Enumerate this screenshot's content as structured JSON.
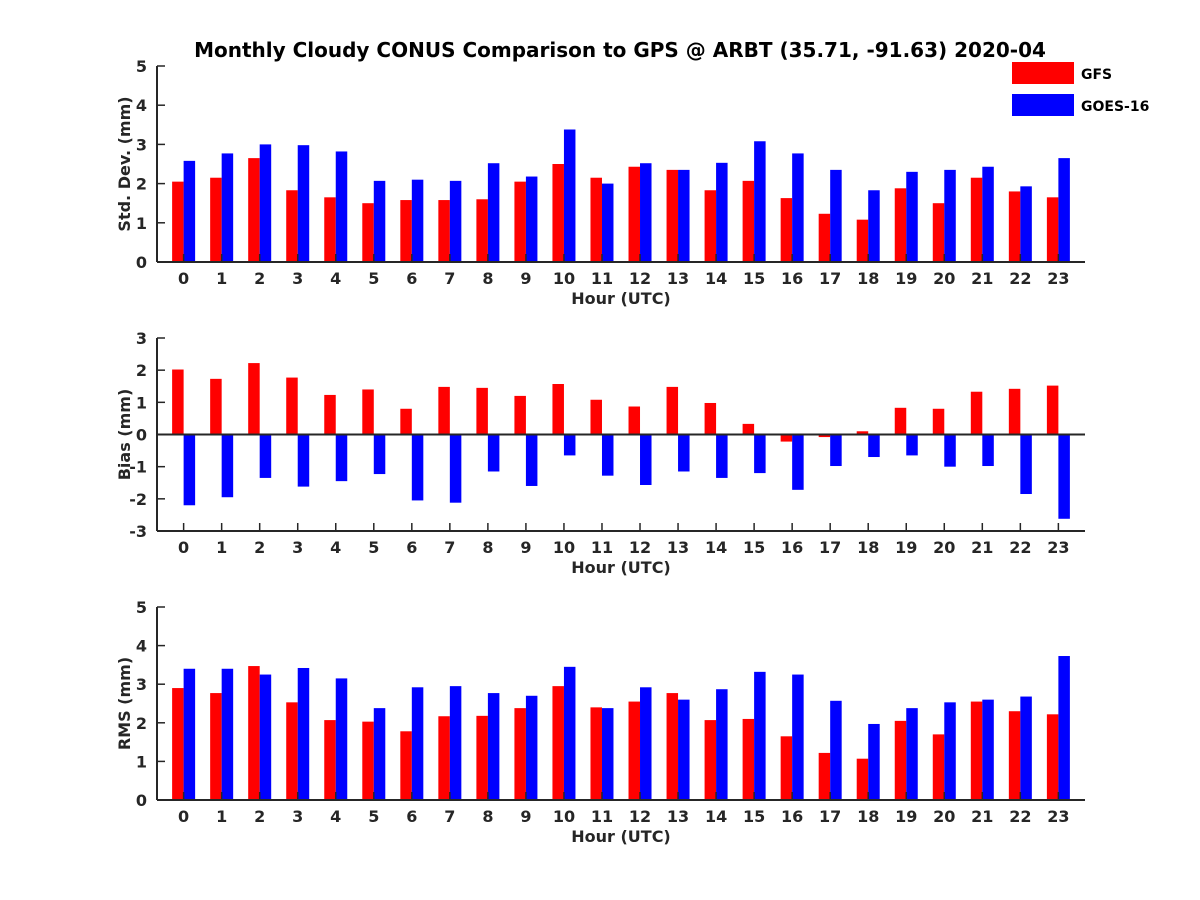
{
  "title": "Monthly Cloudy CONUS Comparison to GPS @ ARBT (35.71, -91.63) 2020-04",
  "colors": {
    "GFS": "#ff0000",
    "GOES-16": "#0000ff",
    "axis": "#262626"
  },
  "legend": {
    "placement": "top-right",
    "entries": [
      "GFS",
      "GOES-16"
    ]
  },
  "chart_data": [
    {
      "type": "bar",
      "xlabel": "Hour (UTC)",
      "ylabel": "Std. Dev. (mm)",
      "ylim": [
        0,
        5
      ],
      "yticks": [
        0,
        1,
        2,
        3,
        4,
        5
      ],
      "categories": [
        "0",
        "1",
        "2",
        "3",
        "4",
        "5",
        "6",
        "7",
        "8",
        "9",
        "10",
        "11",
        "12",
        "13",
        "14",
        "15",
        "16",
        "17",
        "18",
        "19",
        "20",
        "21",
        "22",
        "23"
      ],
      "series": [
        {
          "name": "GFS",
          "values": [
            2.05,
            2.15,
            2.65,
            1.83,
            1.65,
            1.5,
            1.58,
            1.58,
            1.6,
            2.05,
            2.5,
            2.15,
            2.43,
            2.35,
            1.83,
            2.07,
            1.63,
            1.23,
            1.08,
            1.88,
            1.5,
            2.15,
            1.8,
            1.65
          ]
        },
        {
          "name": "GOES-16",
          "values": [
            2.58,
            2.77,
            3.0,
            2.98,
            2.82,
            2.07,
            2.1,
            2.07,
            2.52,
            2.18,
            3.38,
            2.0,
            2.52,
            2.35,
            2.53,
            3.08,
            2.77,
            2.35,
            1.83,
            2.3,
            2.35,
            2.43,
            1.93,
            2.65
          ]
        }
      ]
    },
    {
      "type": "bar",
      "xlabel": "Hour (UTC)",
      "ylabel": "Bias (mm)",
      "ylim": [
        -3,
        3
      ],
      "yticks": [
        -3,
        -2,
        -1,
        0,
        1,
        2,
        3
      ],
      "categories": [
        "0",
        "1",
        "2",
        "3",
        "4",
        "5",
        "6",
        "7",
        "8",
        "9",
        "10",
        "11",
        "12",
        "13",
        "14",
        "15",
        "16",
        "17",
        "18",
        "19",
        "20",
        "21",
        "22",
        "23"
      ],
      "series": [
        {
          "name": "GFS",
          "values": [
            2.02,
            1.73,
            2.22,
            1.77,
            1.23,
            1.4,
            0.8,
            1.48,
            1.45,
            1.2,
            1.57,
            1.08,
            0.87,
            1.48,
            0.98,
            0.33,
            -0.22,
            -0.08,
            0.1,
            0.83,
            0.8,
            1.33,
            1.42,
            1.52
          ]
        },
        {
          "name": "GOES-16",
          "values": [
            -2.2,
            -1.95,
            -1.35,
            -1.62,
            -1.45,
            -1.23,
            -2.05,
            -2.12,
            -1.15,
            -1.6,
            -0.65,
            -1.28,
            -1.57,
            -1.15,
            -1.35,
            -1.2,
            -1.72,
            -0.98,
            -0.7,
            -0.65,
            -1.0,
            -0.98,
            -1.85,
            -2.62
          ]
        }
      ]
    },
    {
      "type": "bar",
      "xlabel": "Hour (UTC)",
      "ylabel": "RMS (mm)",
      "ylim": [
        0,
        5
      ],
      "yticks": [
        0,
        1,
        2,
        3,
        4,
        5
      ],
      "categories": [
        "0",
        "1",
        "2",
        "3",
        "4",
        "5",
        "6",
        "7",
        "8",
        "9",
        "10",
        "11",
        "12",
        "13",
        "14",
        "15",
        "16",
        "17",
        "18",
        "19",
        "20",
        "21",
        "22",
        "23"
      ],
      "series": [
        {
          "name": "GFS",
          "values": [
            2.9,
            2.77,
            3.47,
            2.53,
            2.07,
            2.03,
            1.78,
            2.17,
            2.18,
            2.38,
            2.95,
            2.4,
            2.55,
            2.77,
            2.07,
            2.1,
            1.65,
            1.22,
            1.07,
            2.05,
            1.7,
            2.55,
            2.3,
            2.22
          ]
        },
        {
          "name": "GOES-16",
          "values": [
            3.4,
            3.4,
            3.25,
            3.42,
            3.15,
            2.38,
            2.92,
            2.95,
            2.77,
            2.7,
            3.45,
            2.38,
            2.92,
            2.6,
            2.87,
            3.32,
            3.25,
            2.57,
            1.97,
            2.38,
            2.53,
            2.6,
            2.68,
            3.73
          ]
        }
      ]
    }
  ]
}
